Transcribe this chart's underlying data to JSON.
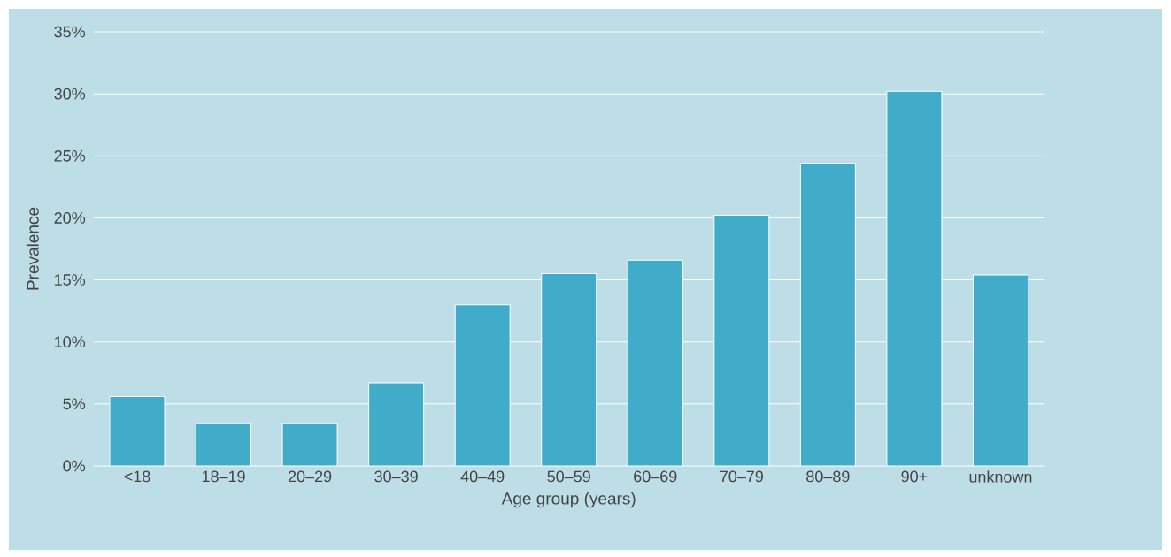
{
  "chart_data": {
    "type": "bar",
    "xlabel": "Age group (years)",
    "ylabel": "Prevalence",
    "categories": [
      "<18",
      "18–19",
      "20–29",
      "30–39",
      "40–49",
      "50–59",
      "60–69",
      "70–79",
      "80–89",
      "90+",
      "unknown"
    ],
    "values": [
      5.6,
      3.4,
      3.4,
      6.7,
      13.0,
      15.5,
      16.6,
      20.2,
      24.4,
      30.2,
      15.4
    ],
    "color": "#41acca",
    "ylim": [
      0,
      35
    ],
    "yticks": [
      {
        "value": 0,
        "label": "0%"
      },
      {
        "value": 5,
        "label": "5%"
      },
      {
        "value": 10,
        "label": "10%"
      },
      {
        "value": 15,
        "label": "15%"
      },
      {
        "value": 20,
        "label": "20%"
      },
      {
        "value": 25,
        "label": "25%"
      },
      {
        "value": 30,
        "label": "30%"
      },
      {
        "value": 35,
        "label": "35%"
      }
    ],
    "grid": "y"
  }
}
